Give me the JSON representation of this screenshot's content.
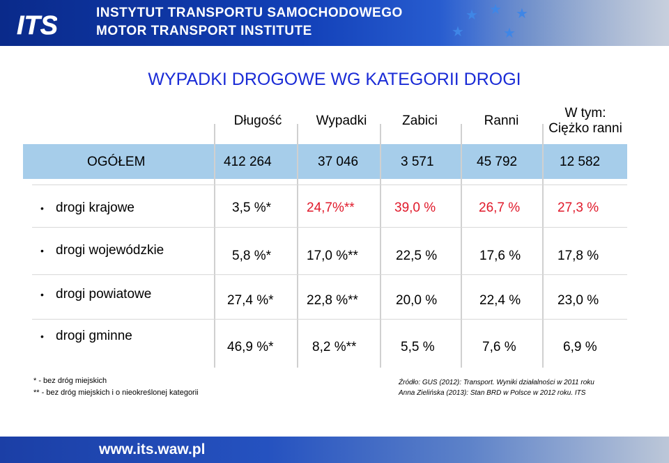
{
  "header": {
    "logo_text": "ITS",
    "line1": "INSTYTUT TRANSPORTU SAMOCHODOWEGO",
    "line2": "MOTOR TRANSPORT INSTITUTE"
  },
  "title": "WYPADKI DROGOWE WG KATEGORII DROGI",
  "columns": [
    "Długość",
    "Wypadki",
    "Zabici",
    "Ranni"
  ],
  "last_column": {
    "line1": "W tym:",
    "line2": "Ciężko ranni"
  },
  "total": {
    "label": "OGÓŁEM",
    "values": [
      "412 264",
      "37 046",
      "3 571",
      "45 792",
      "12 582"
    ]
  },
  "rows": [
    {
      "label": "drogi  krajowe",
      "values": [
        "3,5 %*",
        "24,7%**",
        "39,0 %",
        "26,7 %",
        "27,3 %"
      ]
    },
    {
      "label": "drogi  wojewódzkie",
      "values": [
        "5,8 %*",
        "17,0 %**",
        "22,5 %",
        "17,6 %",
        "17,8 %"
      ]
    },
    {
      "label": "drogi  powiatowe",
      "values": [
        "27,4 %*",
        "22,8 %**",
        "20,0 %",
        "22,4 %",
        "23,0 %"
      ]
    },
    {
      "label": "drogi  gminne",
      "values": [
        "46,9 %*",
        "8,2 %**",
        "5,5 %",
        "7,6 %",
        "6,9 %"
      ]
    }
  ],
  "bullet_symbol": "•",
  "footnotes": {
    "note1": "*   - bez  dróg  miejskich",
    "note2": "** -  bez  dróg  miejskich  i  o nieokreślonej  kategorii",
    "source1": "Źródło:     GUS (2012): Transport. Wyniki działalności w 2011 roku",
    "source2": "Anna Zielińska (2013):  Stan BRD w Polsce w 2012 roku. ITS"
  },
  "footer": {
    "url": "www.its.waw.pl"
  },
  "colors": {
    "title": "#1a2bd6",
    "red_values": "#e0192a",
    "total_band": "#a6cdea",
    "header": "#1240b8"
  }
}
